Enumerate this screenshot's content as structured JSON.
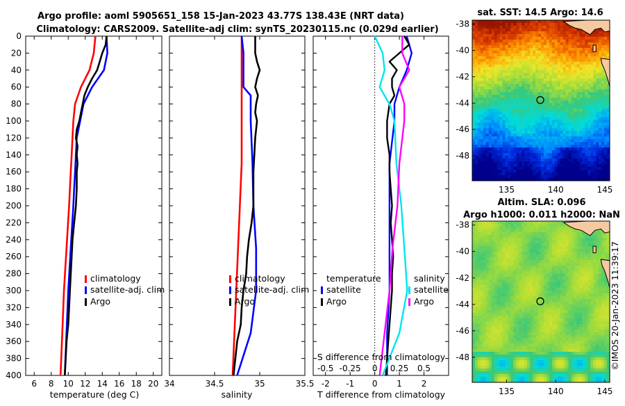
{
  "header": {
    "title_line1": "Argo profile: aoml 5905651_158 15-Jan-2023 43.77S 138.43E (NRT data)",
    "title_line2": "Climatology: CARS2009. Satellite-adj clim: synTS_20230115.nc (0.029d earlier)"
  },
  "side_label": "©IMOS 20-Jan-2023 11:39:17",
  "colors": {
    "climatology": "#ff0000",
    "satellite": "#0000ff",
    "argo": "#000000",
    "s_sat": "#00e5ee",
    "s_argo": "#ff00ff"
  },
  "chart_data": [
    {
      "type": "line",
      "name": "temperature-profile",
      "xlabel": "temperature (deg C)",
      "xlim": [
        5,
        21
      ],
      "ylim": [
        0,
        400
      ],
      "xticks": [
        "6",
        "8",
        "10",
        "12",
        "14",
        "16",
        "18",
        "20"
      ],
      "yticks": [
        "0",
        "20",
        "40",
        "60",
        "80",
        "100",
        "120",
        "140",
        "160",
        "180",
        "200",
        "220",
        "240",
        "260",
        "280",
        "300",
        "320",
        "340",
        "360",
        "380",
        "400"
      ],
      "legend": [
        "climatology",
        "satellite-adj. clim",
        "Argo"
      ],
      "series": [
        {
          "name": "climatology",
          "color": "#ff0000",
          "depth": [
            0,
            20,
            40,
            60,
            80,
            100,
            120,
            140,
            160,
            180,
            200,
            250,
            300,
            350,
            400
          ],
          "values": [
            13.2,
            13.0,
            12.5,
            11.5,
            10.8,
            10.6,
            10.5,
            10.4,
            10.3,
            10.2,
            10.1,
            9.8,
            9.5,
            9.3,
            9.1
          ]
        },
        {
          "name": "satellite-adj. clim",
          "color": "#0000ff",
          "depth": [
            0,
            20,
            40,
            60,
            80,
            100,
            120,
            140,
            160,
            180,
            200,
            250,
            300,
            350,
            400
          ],
          "values": [
            14.5,
            14.6,
            14.2,
            12.8,
            11.8,
            11.4,
            11.0,
            10.9,
            10.8,
            10.7,
            10.6,
            10.3,
            10.0,
            9.8,
            9.6
          ]
        },
        {
          "name": "Argo",
          "color": "#000000",
          "depth": [
            0,
            10,
            20,
            30,
            40,
            50,
            60,
            70,
            80,
            90,
            100,
            110,
            120,
            130,
            140,
            150,
            160,
            180,
            200,
            220,
            240,
            260,
            280,
            300,
            320,
            340,
            360,
            380,
            400
          ],
          "values": [
            14.5,
            14.4,
            14.0,
            13.7,
            13.4,
            12.8,
            12.3,
            11.9,
            11.7,
            11.5,
            11.3,
            11.0,
            10.9,
            11.1,
            11.0,
            11.1,
            11.0,
            11.0,
            10.9,
            10.7,
            10.5,
            10.4,
            10.3,
            10.2,
            10.1,
            10.0,
            9.8,
            9.7,
            9.6
          ]
        }
      ]
    },
    {
      "type": "line",
      "name": "salinity-profile",
      "xlabel": "salinity",
      "xlim": [
        34,
        35.5
      ],
      "ylim": [
        0,
        400
      ],
      "xticks": [
        "34",
        "34.5",
        "35",
        "35.5"
      ],
      "legend": [
        "climatology",
        "satellite-adj. clim",
        "Argo"
      ],
      "series": [
        {
          "name": "climatology",
          "color": "#ff0000",
          "depth": [
            0,
            20,
            40,
            60,
            80,
            100,
            150,
            200,
            250,
            300,
            350,
            400
          ],
          "values": [
            34.8,
            34.8,
            34.8,
            34.8,
            34.8,
            34.8,
            34.8,
            34.78,
            34.76,
            34.74,
            34.72,
            34.7
          ]
        },
        {
          "name": "satellite-adj. clim",
          "color": "#0000ff",
          "depth": [
            0,
            20,
            40,
            60,
            70,
            80,
            100,
            150,
            200,
            250,
            300,
            350,
            400
          ],
          "values": [
            34.8,
            34.82,
            34.82,
            34.82,
            34.9,
            34.9,
            34.9,
            34.92,
            34.93,
            34.96,
            34.96,
            34.9,
            34.75
          ]
        },
        {
          "name": "Argo",
          "color": "#000000",
          "depth": [
            0,
            20,
            30,
            40,
            50,
            60,
            70,
            80,
            90,
            100,
            120,
            140,
            160,
            180,
            200,
            220,
            240,
            260,
            280,
            300,
            320,
            340,
            360,
            380,
            400
          ],
          "values": [
            34.95,
            34.95,
            34.97,
            35.0,
            34.97,
            34.95,
            34.98,
            34.96,
            34.95,
            34.97,
            34.95,
            34.94,
            34.93,
            34.93,
            34.93,
            34.91,
            34.88,
            34.86,
            34.85,
            34.82,
            34.8,
            34.79,
            34.75,
            34.73,
            34.71
          ]
        }
      ]
    },
    {
      "type": "line",
      "name": "difference-profile",
      "xlabel": "T difference from climatology",
      "xlabel_top": "S difference from climatology",
      "xlim": [
        -2.5,
        3
      ],
      "ylim": [
        0,
        400
      ],
      "xticks": [
        "-2",
        "-1",
        "0",
        "1",
        "2"
      ],
      "xticks_top": [
        "-0.5",
        "-0.25",
        "0",
        "0.25",
        "0.5"
      ],
      "legend_temperature": {
        "title": "temperature",
        "items": [
          "satellite",
          "Argo"
        ]
      },
      "legend_salinity": {
        "title": "salinity",
        "items": [
          "satellite",
          "Argo"
        ]
      },
      "series": [
        {
          "name": "T satellite",
          "color": "#0000ff",
          "depth": [
            0,
            20,
            40,
            60,
            80,
            100,
            150,
            200,
            250,
            300,
            350,
            400
          ],
          "values": [
            1.3,
            1.5,
            1.3,
            1.0,
            0.8,
            0.8,
            0.6,
            0.6,
            0.6,
            0.6,
            0.5,
            0.5
          ]
        },
        {
          "name": "T Argo",
          "color": "#000000",
          "depth": [
            0,
            10,
            20,
            30,
            40,
            50,
            60,
            70,
            80,
            100,
            120,
            140,
            160,
            180,
            200,
            220,
            240,
            260,
            280,
            300,
            320,
            340,
            360,
            380,
            400
          ],
          "values": [
            1.2,
            1.4,
            1.0,
            0.6,
            0.9,
            0.7,
            0.7,
            0.8,
            0.6,
            0.5,
            0.5,
            0.6,
            0.6,
            0.65,
            0.7,
            0.65,
            0.7,
            0.75,
            0.7,
            0.7,
            0.65,
            0.6,
            0.55,
            0.5,
            0.45
          ]
        },
        {
          "name": "S satellite",
          "color": "#00e5ee",
          "depth": [
            0,
            20,
            40,
            60,
            80,
            100,
            150,
            200,
            250,
            300,
            350,
            400
          ],
          "values": [
            0.0,
            0.08,
            0.1,
            0.05,
            0.15,
            0.2,
            0.22,
            0.27,
            0.3,
            0.33,
            0.25,
            0.08
          ]
        },
        {
          "name": "S Argo",
          "color": "#ff00ff",
          "depth": [
            0,
            20,
            40,
            60,
            80,
            100,
            150,
            200,
            250,
            300,
            350,
            400
          ],
          "values": [
            0.28,
            0.28,
            0.35,
            0.25,
            0.3,
            0.3,
            0.25,
            0.23,
            0.18,
            0.15,
            0.1,
            0.05
          ]
        }
      ]
    },
    {
      "type": "heatmap",
      "name": "sst-map",
      "title": "sat. SST: 14.5 Argo: 14.6",
      "xlim": [
        131.5,
        145.5
      ],
      "ylim": [
        -49.9,
        -37.7
      ],
      "xticks": [
        "135",
        "140",
        "145"
      ],
      "yticks": [
        "-38",
        "-40",
        "-42",
        "-44",
        "-46",
        "-48"
      ],
      "marker": {
        "lon": 138.43,
        "lat": -43.77
      }
    },
    {
      "type": "heatmap",
      "name": "sla-map",
      "title_line1": "Altim. SLA: 0.096",
      "title_line2": "Argo h1000: 0.011 h2000: NaN",
      "xlim": [
        131.5,
        145.5
      ],
      "ylim": [
        -49.9,
        -37.7
      ],
      "xticks": [
        "135",
        "140",
        "145"
      ],
      "yticks": [
        "-38",
        "-40",
        "-42",
        "-44",
        "-46",
        "-48"
      ],
      "marker": {
        "lon": 138.43,
        "lat": -43.77
      }
    }
  ]
}
